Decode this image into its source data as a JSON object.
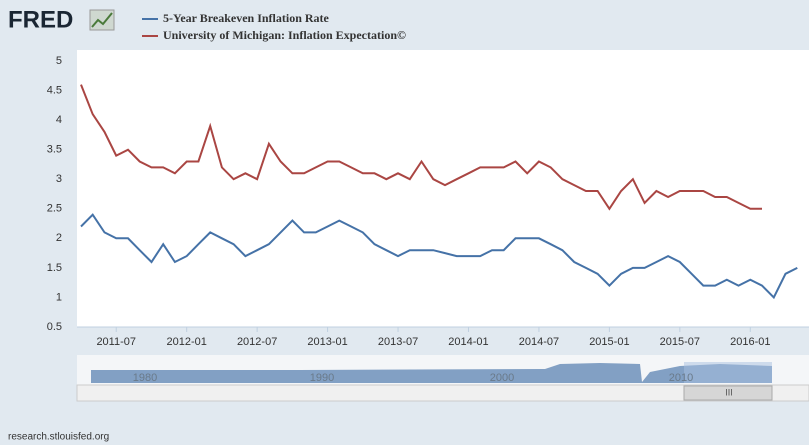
{
  "brand": "FRED",
  "chart_data": {
    "type": "line",
    "x": [
      "2011-04",
      "2011-05",
      "2011-06",
      "2011-07",
      "2011-08",
      "2011-09",
      "2011-10",
      "2011-11",
      "2011-12",
      "2012-01",
      "2012-02",
      "2012-03",
      "2012-04",
      "2012-05",
      "2012-06",
      "2012-07",
      "2012-08",
      "2012-09",
      "2012-10",
      "2012-11",
      "2012-12",
      "2013-01",
      "2013-02",
      "2013-03",
      "2013-04",
      "2013-05",
      "2013-06",
      "2013-07",
      "2013-08",
      "2013-09",
      "2013-10",
      "2013-11",
      "2013-12",
      "2014-01",
      "2014-02",
      "2014-03",
      "2014-04",
      "2014-05",
      "2014-06",
      "2014-07",
      "2014-08",
      "2014-09",
      "2014-10",
      "2014-11",
      "2014-12",
      "2015-01",
      "2015-02",
      "2015-03",
      "2015-04",
      "2015-05",
      "2015-06",
      "2015-07",
      "2015-08",
      "2015-09",
      "2015-10",
      "2015-11",
      "2015-12",
      "2016-01",
      "2016-02",
      "2016-03",
      "2016-04",
      "2016-05"
    ],
    "series": [
      {
        "name": "5-Year Breakeven Inflation Rate",
        "color": "#4572a7",
        "values": [
          2.2,
          2.4,
          2.1,
          2.0,
          2.0,
          1.8,
          1.6,
          1.9,
          1.6,
          1.7,
          1.9,
          2.1,
          2.0,
          1.9,
          1.7,
          1.8,
          1.9,
          2.1,
          2.3,
          2.1,
          2.1,
          2.2,
          2.3,
          2.2,
          2.1,
          1.9,
          1.8,
          1.7,
          1.8,
          1.8,
          1.8,
          1.75,
          1.7,
          1.7,
          1.7,
          1.8,
          1.8,
          2.0,
          2.0,
          2.0,
          1.9,
          1.8,
          1.6,
          1.5,
          1.4,
          1.2,
          1.4,
          1.5,
          1.5,
          1.6,
          1.7,
          1.6,
          1.4,
          1.2,
          1.2,
          1.3,
          1.2,
          1.3,
          1.2,
          1.0,
          1.4,
          1.5
        ]
      },
      {
        "name": "University of Michigan: Inflation Expectation©",
        "color": "#aa4643",
        "values": [
          4.6,
          4.1,
          3.8,
          3.4,
          3.5,
          3.3,
          3.2,
          3.2,
          3.1,
          3.3,
          3.3,
          3.9,
          3.2,
          3.0,
          3.1,
          3.0,
          3.6,
          3.3,
          3.1,
          3.1,
          3.2,
          3.3,
          3.3,
          3.2,
          3.1,
          3.1,
          3.0,
          3.1,
          3.0,
          3.3,
          3.0,
          2.9,
          3.0,
          3.1,
          3.2,
          3.2,
          3.2,
          3.3,
          3.1,
          3.3,
          3.2,
          3.0,
          2.9,
          2.8,
          2.8,
          2.5,
          2.8,
          3.0,
          2.6,
          2.8,
          2.7,
          2.8,
          2.8,
          2.8,
          2.7,
          2.7,
          2.6,
          2.5,
          2.5,
          null,
          null,
          null
        ]
      }
    ],
    "xlim": [
      "2011-04",
      "2016-06"
    ],
    "xticks": [
      "2011-07",
      "2012-01",
      "2012-07",
      "2013-01",
      "2013-07",
      "2014-01",
      "2014-07",
      "2015-01",
      "2015-07",
      "2016-01"
    ],
    "ylim": [
      0.5,
      5.0
    ],
    "yticks": [
      0.5,
      1.0,
      1.5,
      2.0,
      2.5,
      3.0,
      3.5,
      4.0,
      4.5,
      5.0
    ],
    "grid": false
  },
  "navigator": {
    "labels": [
      "1980",
      "1990",
      "2000",
      "2010"
    ],
    "scroll_label": "III"
  },
  "footer": "research.stlouisfed.org"
}
